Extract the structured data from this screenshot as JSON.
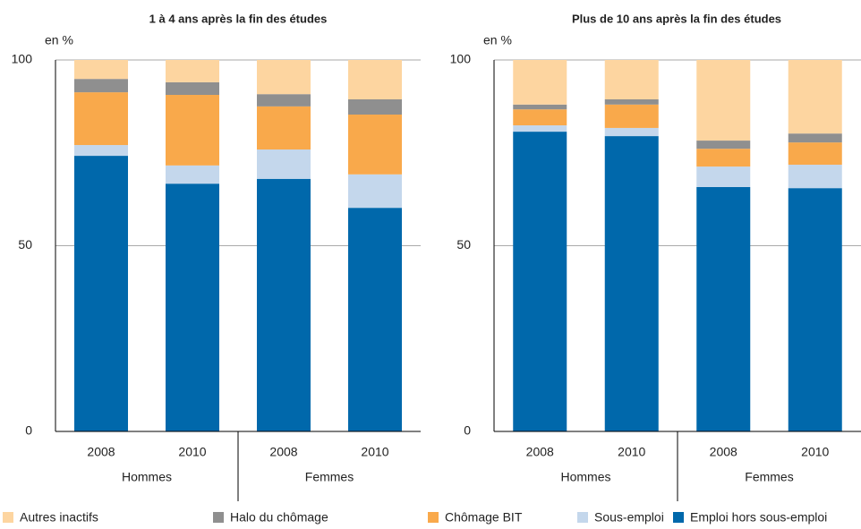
{
  "legend": [
    {
      "name": "Autres inactifs",
      "color": "#fdd5a0"
    },
    {
      "name": "Halo du chômage",
      "color": "#8f8f8f"
    },
    {
      "name": "Chômage BIT",
      "color": "#f9a94b"
    },
    {
      "name": "Sous-emploi",
      "color": "#c4d7ec"
    },
    {
      "name": "Emploi hors sous-emploi",
      "color": "#0068ab"
    }
  ],
  "chart_data": [
    {
      "type": "stacked_bar",
      "title": "1 à 4 ans après la fin des études",
      "y_label": "en %",
      "categories": [
        "2008",
        "2010",
        "2008",
        "2010"
      ],
      "groups": [
        "Hommes",
        "Femmes"
      ],
      "ylim": [
        0,
        100
      ],
      "yticks": [
        0,
        50,
        100
      ],
      "grid": true,
      "series": [
        {
          "values": [
            5.1,
            6.0,
            9.2,
            10.6
          ]
        },
        {
          "values": [
            3.6,
            3.4,
            3.3,
            4.1
          ]
        },
        {
          "values": [
            14.2,
            19.0,
            11.6,
            16.1
          ]
        },
        {
          "values": [
            2.9,
            4.9,
            7.9,
            9.0
          ]
        },
        {
          "values": [
            74.2,
            66.7,
            68.0,
            60.2
          ]
        }
      ]
    },
    {
      "type": "stacked_bar",
      "title": "Plus de 10 ans après la fin des études",
      "y_label": "en %",
      "categories": [
        "2008",
        "2010",
        "2008",
        "2010"
      ],
      "groups": [
        "Hommes",
        "Femmes"
      ],
      "ylim": [
        0,
        100
      ],
      "yticks": [
        0,
        50,
        100
      ],
      "grid": true,
      "series": [
        {
          "values": [
            12.0,
            10.6,
            21.7,
            19.8
          ]
        },
        {
          "values": [
            1.3,
            1.4,
            2.2,
            2.4
          ]
        },
        {
          "values": [
            4.3,
            6.3,
            4.8,
            6.0
          ]
        },
        {
          "values": [
            1.7,
            2.2,
            5.5,
            6.3
          ]
        },
        {
          "values": [
            80.7,
            79.5,
            65.8,
            65.5
          ]
        }
      ]
    }
  ]
}
